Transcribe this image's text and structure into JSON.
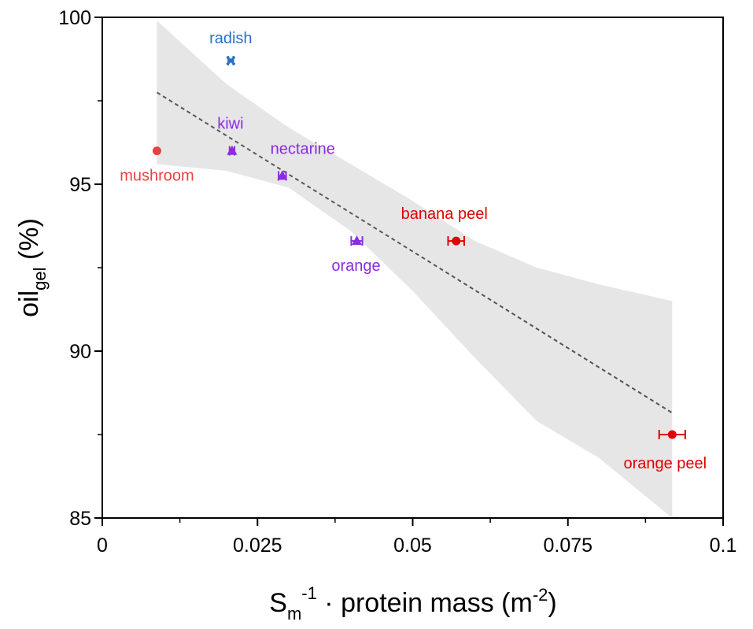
{
  "chart_data": {
    "type": "scatter",
    "xlabel": {
      "main": "S",
      "sub": "m",
      "sup": "-1",
      "rest": " · protein mass (m",
      "rest_sup": "-2",
      "close": ")"
    },
    "ylabel": {
      "main": "oil",
      "sub": "gel",
      "rest": " (%)"
    },
    "xlim": [
      0,
      0.1
    ],
    "ylim": [
      85,
      100
    ],
    "x_ticks": [
      {
        "value": 0,
        "label": "0"
      },
      {
        "value": 0.025,
        "label": "0.025"
      },
      {
        "value": 0.05,
        "label": "0.05"
      },
      {
        "value": 0.075,
        "label": "0.075"
      },
      {
        "value": 0.1,
        "label": "0.1"
      }
    ],
    "y_ticks": [
      {
        "value": 85,
        "label": "85"
      },
      {
        "value": 90,
        "label": "90"
      },
      {
        "value": 95,
        "label": "95"
      },
      {
        "value": 100,
        "label": "100"
      }
    ],
    "x_minor_ticks": [
      0.0125,
      0.0375,
      0.0625,
      0.0875
    ],
    "y_minor_ticks": [
      87.5,
      92.5,
      97.5
    ],
    "grid": false,
    "points": [
      {
        "label": "radish",
        "x": 0.0207,
        "y": 98.7,
        "xerr": 0.0004,
        "color": "#2b6fc9",
        "marker": "x"
      },
      {
        "label": "kiwi",
        "x": 0.0209,
        "y": 96.0,
        "xerr": 0.0004,
        "color": "#8b2be2",
        "marker": "triangle"
      },
      {
        "label": "nectarine",
        "x": 0.029,
        "y": 95.25,
        "xerr": 0.0006,
        "color": "#8b2be2",
        "marker": "triangle"
      },
      {
        "label": "orange",
        "x": 0.041,
        "y": 93.3,
        "xerr": 0.0009,
        "color": "#8b2be2",
        "marker": "triangle"
      },
      {
        "label": "mushroom",
        "x": 0.0088,
        "y": 96.0,
        "xerr": 0.0,
        "color": "#e84141",
        "marker": "circle"
      },
      {
        "label": "banana peel",
        "x": 0.057,
        "y": 93.3,
        "xerr": 0.0013,
        "color": "#e00000",
        "marker": "circle"
      },
      {
        "label": "orange peel",
        "x": 0.0918,
        "y": 87.5,
        "xerr": 0.0021,
        "color": "#e00000",
        "marker": "circle"
      }
    ],
    "fit_line": {
      "x": [
        0.0088,
        0.0918
      ],
      "y": [
        97.75,
        88.15
      ],
      "style": "dashed",
      "color": "#555555"
    },
    "confidence_band": {
      "x": [
        0.0088,
        0.02,
        0.03,
        0.04,
        0.05,
        0.06,
        0.07,
        0.08,
        0.0918
      ],
      "upper": [
        99.9,
        98.0,
        96.7,
        95.6,
        94.5,
        93.3,
        92.5,
        92.0,
        91.5
      ],
      "lower": [
        95.6,
        95.4,
        94.9,
        93.6,
        91.8,
        89.8,
        87.9,
        86.8,
        85.0
      ],
      "color": "#e6e6e6"
    }
  }
}
